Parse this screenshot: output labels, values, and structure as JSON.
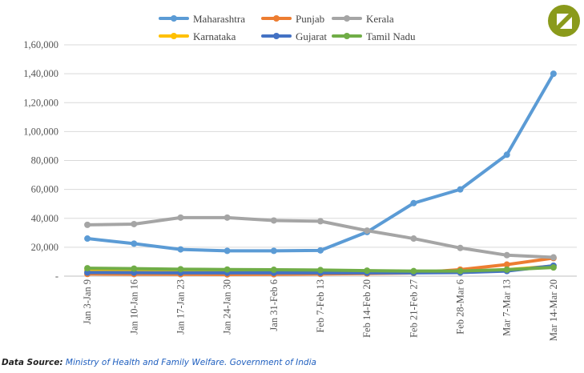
{
  "chart_data": {
    "type": "line",
    "categories": [
      "Jan 3-Jan 9",
      "Jan 10-Jan 16",
      "Jan 17-Jan 23",
      "Jan 24-Jan 30",
      "Jan 31-Feb 6",
      "Feb 7-Feb 13",
      "Feb 14-Feb 20",
      "Feb 21-Feb 27",
      "Feb 28-Mar 6",
      "Mar 7-Mar 13",
      "Mar 14-Mar 20"
    ],
    "series": [
      {
        "name": "Maharashtra",
        "color": "#5B9BD5",
        "values": [
          26000,
          22500,
          18500,
          17500,
          17500,
          17800,
          30500,
          50500,
          60000,
          84000,
          140000
        ]
      },
      {
        "name": "Punjab",
        "color": "#ED7D31",
        "values": [
          1500,
          1400,
          1300,
          1200,
          1300,
          1500,
          1800,
          2200,
          4500,
          8000,
          12500
        ]
      },
      {
        "name": "Kerala",
        "color": "#A5A5A5",
        "values": [
          35500,
          36000,
          40500,
          40500,
          38500,
          38000,
          31500,
          26000,
          19500,
          14500,
          13000
        ]
      },
      {
        "name": "Karnataka",
        "color": "#FFC000",
        "values": [
          4000,
          3500,
          3200,
          3200,
          3000,
          3000,
          3000,
          3200,
          3200,
          4500,
          7000
        ]
      },
      {
        "name": "Gujarat",
        "color": "#4472C4",
        "values": [
          2500,
          2400,
          2300,
          2300,
          2300,
          2300,
          2300,
          2300,
          2500,
          3500,
          7200
        ]
      },
      {
        "name": "Tamil Nadu",
        "color": "#70AD47",
        "values": [
          5500,
          5200,
          4800,
          4600,
          4400,
          4200,
          3800,
          3500,
          3500,
          4500,
          6000
        ]
      }
    ],
    "ylim": [
      0,
      160000
    ],
    "yticks": [
      "-",
      "20,000",
      "40,000",
      "60,000",
      "80,000",
      "1,00,000",
      "1,20,000",
      "1,40,000",
      "1,60,000"
    ],
    "grid": true,
    "legend_position": "top"
  },
  "source": {
    "prefix": "Data Source:",
    "text": "Ministry of Health and Family Welfare. Government of India"
  },
  "logo": {
    "color": "#8a9a1b"
  }
}
